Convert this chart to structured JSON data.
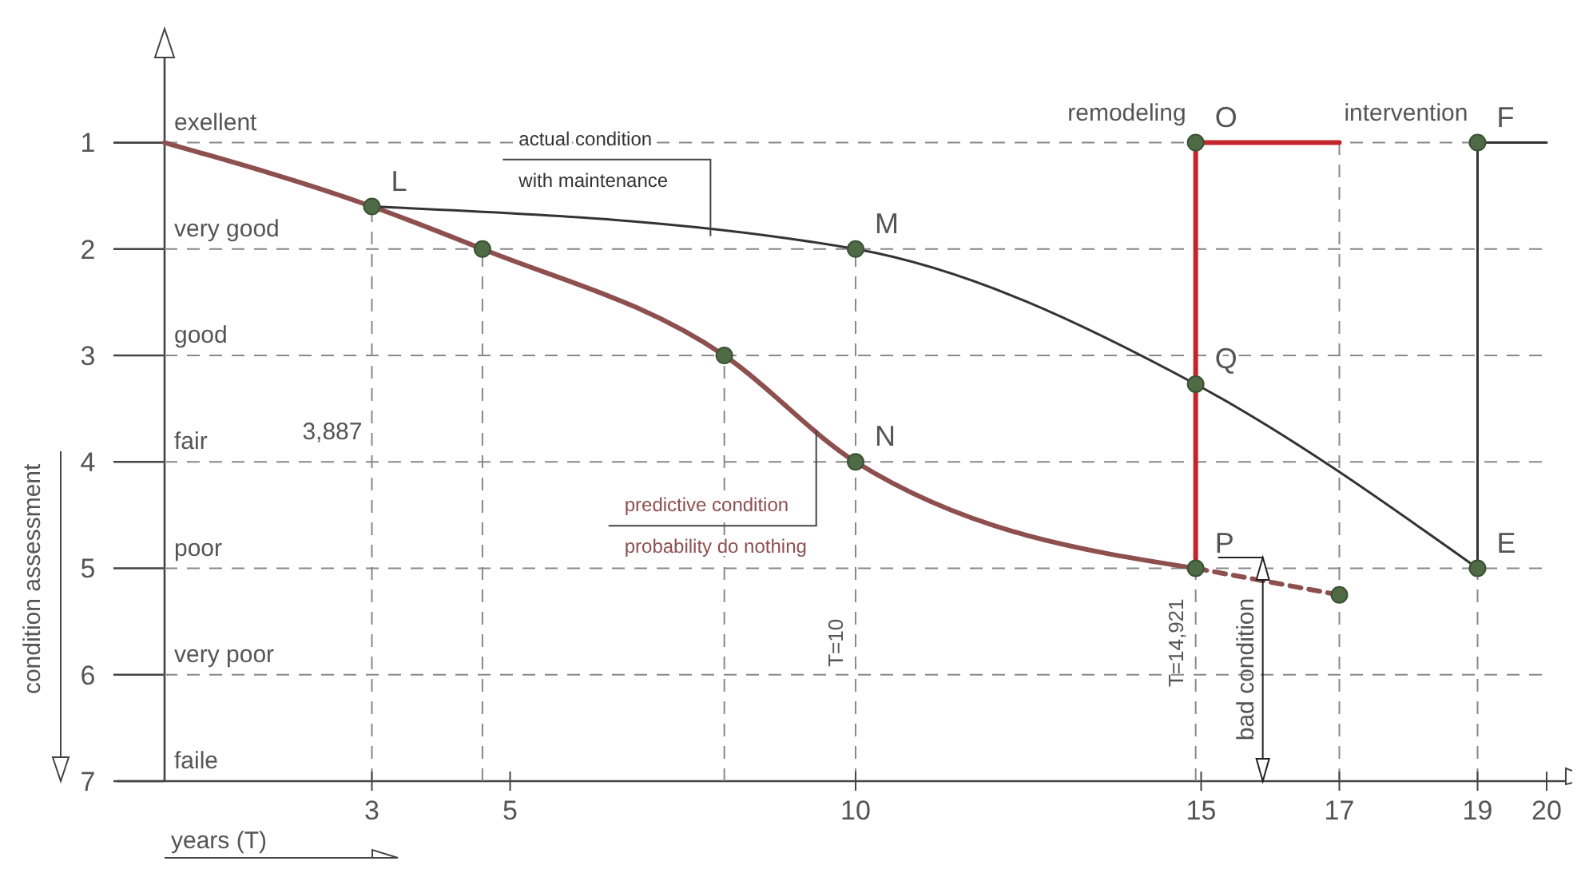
{
  "chart_data": {
    "type": "line",
    "xlabel": "years (T)",
    "ylabel": "condition assessment",
    "xlim": [
      0,
      20
    ],
    "xticks": [
      3,
      5,
      10,
      15,
      17,
      19,
      20
    ],
    "ylim": [
      7,
      0.2
    ],
    "yticks": [
      1,
      2,
      3,
      4,
      5,
      6,
      7
    ],
    "series": [
      {
        "name": "predictive condition probability do nothing",
        "color": "#8e4f4f",
        "x": [
          0,
          3,
          4.6,
          8.1,
          10,
          14.921
        ],
        "values": [
          1,
          1.6,
          2,
          3,
          4,
          5
        ]
      },
      {
        "color": "#8e4f4f",
        "x": [
          14.921,
          17
        ],
        "values": [
          5,
          5.25
        ],
        "line_style": "dashed"
      },
      {
        "name": "actual condition with maintenance",
        "color": "#333333",
        "x": [
          3,
          10,
          14.921,
          19
        ],
        "values": [
          1.6,
          2,
          3.27,
          5
        ]
      },
      {
        "color": "#c4242b",
        "x": [
          14.921,
          14.921,
          17
        ],
        "values": [
          5,
          1,
          1
        ]
      },
      {
        "color": "#333333",
        "x": [
          19,
          19,
          20
        ],
        "values": [
          5,
          1,
          1
        ]
      },
      {
        "type": "scatter",
        "marker": "circle",
        "color": "#4e6b45",
        "x": [
          3,
          4.6,
          8.1,
          10,
          10,
          14.921,
          14.921,
          14.921,
          17,
          19,
          19
        ],
        "values": [
          1.6,
          2,
          3,
          2,
          4,
          5,
          3.27,
          1,
          5.25,
          5,
          1
        ]
      }
    ],
    "ref_lines": [
      {
        "axis": "y",
        "value": 1,
        "label": "exellent"
      },
      {
        "axis": "y",
        "value": 2,
        "label": "very good"
      },
      {
        "axis": "y",
        "value": 3,
        "label": "good"
      },
      {
        "axis": "y",
        "value": 4,
        "label": "fair"
      },
      {
        "axis": "y",
        "value": 5,
        "label": "poor"
      },
      {
        "axis": "y",
        "value": 6,
        "label": "very poor"
      },
      {
        "axis": "x",
        "value": 3
      },
      {
        "axis": "x",
        "value": 4.6
      },
      {
        "axis": "x",
        "value": 8.1
      },
      {
        "axis": "x",
        "value": 10,
        "label": "T=10"
      },
      {
        "axis": "x",
        "value": 14.921,
        "label": "T=14,921"
      },
      {
        "axis": "x",
        "value": 17
      },
      {
        "axis": "x",
        "value": 19
      }
    ],
    "annotations": [
      "faile",
      {
        "text": "L",
        "x": 3,
        "y": 1.6
      },
      {
        "text": "M",
        "x": 10,
        "y": 2
      },
      {
        "text": "N",
        "x": 10,
        "y": 4
      },
      {
        "text": "O",
        "x": 14.921,
        "y": 1
      },
      {
        "text": "P",
        "x": 14.921,
        "y": 5
      },
      {
        "text": "Q",
        "x": 14.921,
        "y": 3.27
      },
      {
        "text": "E",
        "x": 19,
        "y": 5
      },
      {
        "text": "F",
        "x": 19,
        "y": 1
      },
      {
        "text": "3,887",
        "x": 3,
        "y": 4
      },
      {
        "text": "remodeling",
        "x": 14.921,
        "y": 1
      },
      {
        "text": "intervention",
        "x": 19,
        "y": 1
      },
      "bad condition"
    ]
  }
}
